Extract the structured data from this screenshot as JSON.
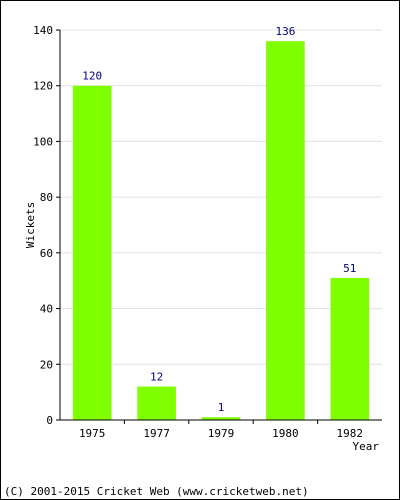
{
  "chart_data": {
    "type": "bar",
    "categories": [
      "1975",
      "1977",
      "1979",
      "1980",
      "1982"
    ],
    "values": [
      120,
      12,
      1,
      136,
      51
    ],
    "xlabel": "Year",
    "ylabel": "Wickets",
    "ylim": [
      0,
      140
    ],
    "yticks": [
      0,
      20,
      40,
      60,
      80,
      100,
      120,
      140
    ],
    "grid": true,
    "bar_color": "#80ff00",
    "label_color": "#000080",
    "grid_color": "#e0e0e0"
  },
  "footer": {
    "copyright": "(C) 2001-2015 Cricket Web (www.cricketweb.net)"
  }
}
